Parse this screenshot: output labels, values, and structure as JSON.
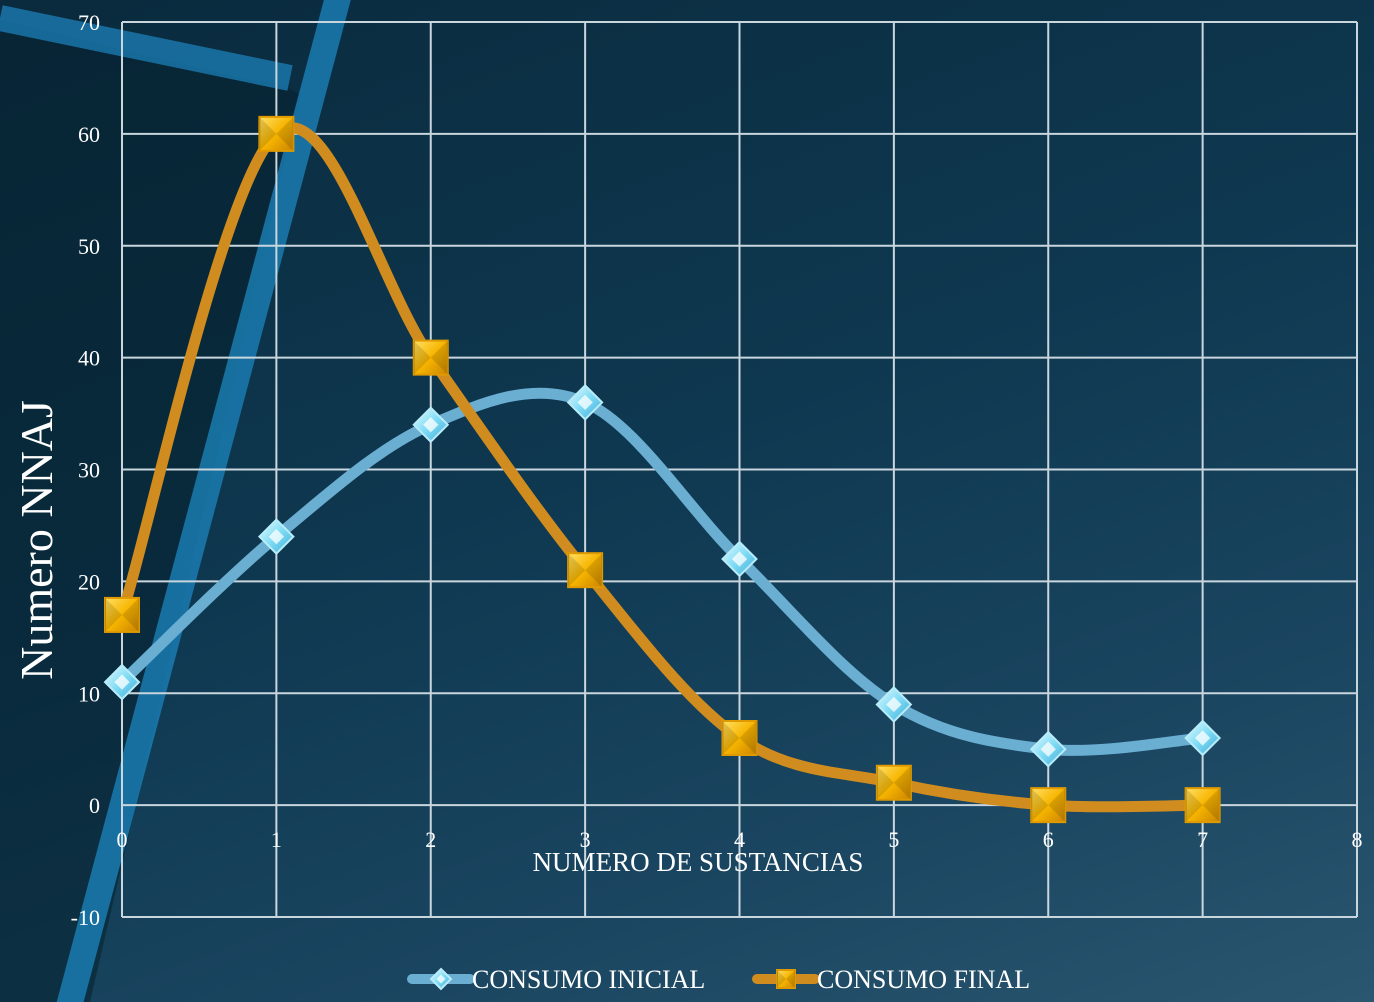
{
  "chart_data": {
    "type": "line",
    "smooth": true,
    "xlabel": "NUMERO DE SUSTANCIAS",
    "ylabel": "Numero NNAJ",
    "xlim": [
      0,
      8
    ],
    "ylim": [
      -10,
      70
    ],
    "x_ticks": [
      0,
      1,
      2,
      3,
      4,
      5,
      6,
      7,
      8
    ],
    "y_ticks": [
      -10,
      0,
      10,
      20,
      30,
      40,
      50,
      60,
      70
    ],
    "x_tick_labels": [
      "0",
      "1",
      "2",
      "3",
      "4",
      "5",
      "6",
      "7",
      "8"
    ],
    "y_tick_labels": [
      "-10",
      "0",
      "10",
      "20",
      "30",
      "40",
      "50",
      "60",
      "70"
    ],
    "grid": true,
    "legend_position": "bottom",
    "series": [
      {
        "name": "CONSUMO INICIAL",
        "color": "#6aaed2",
        "marker": "diamond",
        "marker_color": "#7fdcf5",
        "x": [
          0,
          1,
          2,
          3,
          4,
          5,
          6,
          7
        ],
        "values": [
          11,
          24,
          34,
          36,
          22,
          9,
          5,
          6
        ]
      },
      {
        "name": "CONSUMO FINAL",
        "color": "#d08c1e",
        "marker": "square",
        "marker_color": "#f7b500",
        "x": [
          0,
          1,
          2,
          3,
          4,
          5,
          6,
          7
        ],
        "values": [
          17,
          60,
          40,
          21,
          6,
          2,
          0,
          0
        ]
      }
    ]
  }
}
